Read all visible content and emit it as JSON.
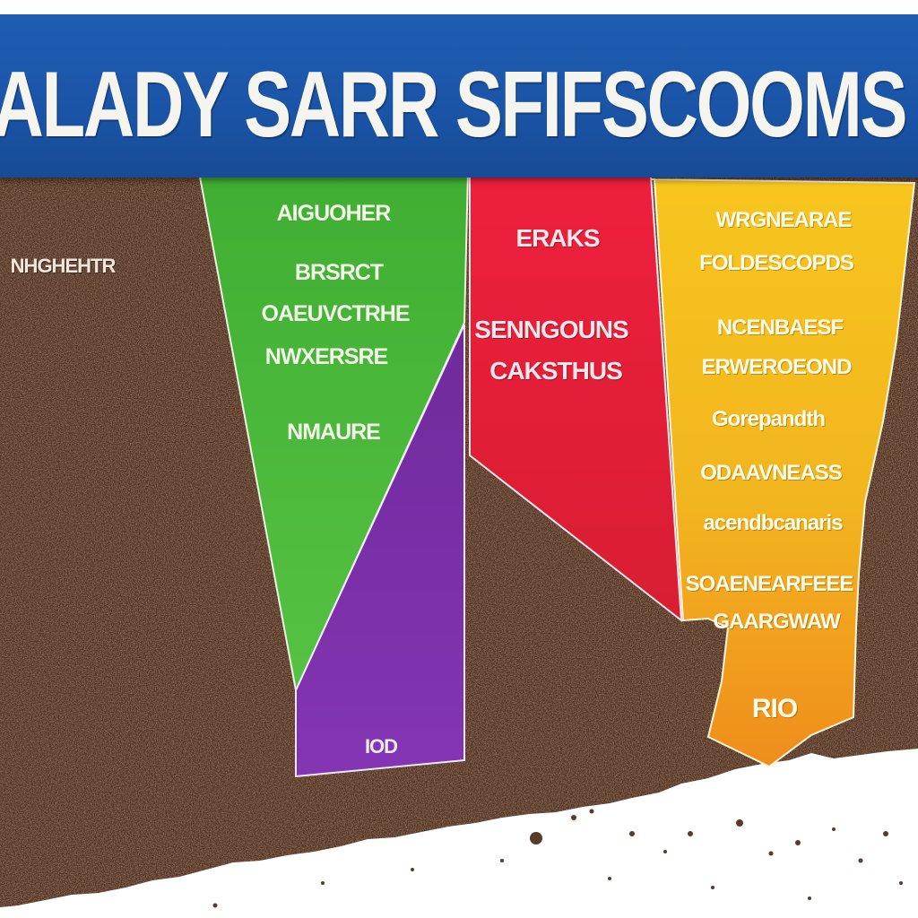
{
  "banner": {
    "title": "ALADY SARR SFIFSCOOMS"
  },
  "soil_label": "NHGHEHTR",
  "green_panel": {
    "lines": [
      "AIGUOHER",
      "BRSRCT",
      "OAEUVCTRHE",
      "NWXERSRE",
      "NMAURE"
    ]
  },
  "red_panel": {
    "lines": [
      "ERAKS",
      "SENNGOUNS",
      "CAKSTHUS"
    ]
  },
  "yellow_panel": {
    "lines": [
      "WRGNEARAE",
      "FOLDESCOPDS",
      "NCENBAESF",
      "ERWEROEOND",
      "Gorepandth",
      "ODAAVNEASS",
      "acendbcanaris",
      "SOAENEARFEEE",
      "GAARGWAW",
      "RIO"
    ]
  },
  "purple_panel": {
    "label": "IOD"
  },
  "colors": {
    "banner": "#1f5db3",
    "green": "#4cb83a",
    "red": "#e8233a",
    "purple": "#7b2fa8",
    "yellow": "#f3b81f",
    "orange": "#f39a1c",
    "soil_dark": "#3a2418",
    "soil_light": "#8a5436"
  }
}
